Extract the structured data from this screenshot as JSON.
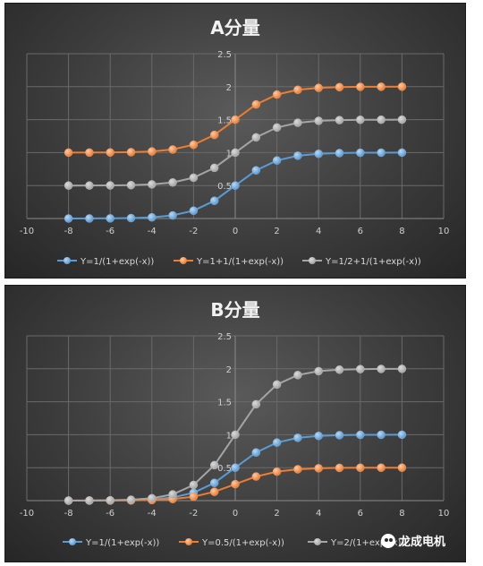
{
  "watermark": {
    "text": "龙成电机",
    "icon": "wechat-icon"
  },
  "chart_data": [
    {
      "type": "line",
      "title": "A分量",
      "xlabel": "",
      "ylabel": "",
      "xlim": [
        -10,
        10
      ],
      "ylim": [
        0,
        2.5
      ],
      "xticks": [
        -10,
        -8,
        -6,
        -4,
        -2,
        0,
        2,
        4,
        6,
        8,
        10
      ],
      "yticks": [
        0.5,
        1,
        1.5,
        2,
        2.5
      ],
      "grid": true,
      "legend": "bottom",
      "x": [
        -8,
        -7,
        -6,
        -5,
        -4,
        -3,
        -2,
        -1,
        0,
        1,
        2,
        3,
        4,
        5,
        6,
        7,
        8
      ],
      "series": [
        {
          "name": "Y=1/(1+exp(-x))",
          "color": "#5b9bd5",
          "values": [
            0.0003,
            0.0009,
            0.0025,
            0.0067,
            0.018,
            0.047,
            0.119,
            0.269,
            0.5,
            0.731,
            0.881,
            0.953,
            0.982,
            0.993,
            0.998,
            0.999,
            1.0
          ]
        },
        {
          "name": "Y=1+1/(1+exp(-x))",
          "color": "#ed7d31",
          "values": [
            1.0003,
            1.0009,
            1.0025,
            1.0067,
            1.018,
            1.047,
            1.119,
            1.269,
            1.5,
            1.731,
            1.881,
            1.953,
            1.982,
            1.993,
            1.998,
            1.999,
            2.0
          ]
        },
        {
          "name": "Y=1/2+1/(1+exp(-x))",
          "color": "#a5a5a5",
          "values": [
            0.5003,
            0.5009,
            0.5025,
            0.5067,
            0.518,
            0.547,
            0.619,
            0.769,
            1.0,
            1.231,
            1.381,
            1.453,
            1.482,
            1.493,
            1.498,
            1.499,
            1.5
          ]
        }
      ]
    },
    {
      "type": "line",
      "title": "B分量",
      "xlabel": "",
      "ylabel": "",
      "xlim": [
        -10,
        10
      ],
      "ylim": [
        0,
        2.5
      ],
      "xticks": [
        -10,
        -8,
        -6,
        -4,
        -2,
        0,
        2,
        4,
        6,
        8,
        10
      ],
      "yticks": [
        0.5,
        1,
        1.5,
        2,
        2.5
      ],
      "grid": true,
      "legend": "bottom",
      "x": [
        -8,
        -7,
        -6,
        -5,
        -4,
        -3,
        -2,
        -1,
        0,
        1,
        2,
        3,
        4,
        5,
        6,
        7,
        8
      ],
      "series": [
        {
          "name": "Y=1/(1+exp(-x))",
          "color": "#5b9bd5",
          "values": [
            0.0003,
            0.0009,
            0.0025,
            0.0067,
            0.018,
            0.047,
            0.119,
            0.269,
            0.5,
            0.731,
            0.881,
            0.953,
            0.982,
            0.993,
            0.998,
            0.999,
            1.0
          ]
        },
        {
          "name": "Y=0.5/(1+exp(-x))",
          "color": "#ed7d31",
          "values": [
            0.0002,
            0.0005,
            0.0012,
            0.0033,
            0.009,
            0.024,
            0.06,
            0.134,
            0.25,
            0.366,
            0.44,
            0.476,
            0.491,
            0.497,
            0.499,
            0.4995,
            0.5
          ]
        },
        {
          "name": "Y=2/(1+exp(-x))",
          "color": "#a5a5a5",
          "values": [
            0.0007,
            0.0018,
            0.005,
            0.0134,
            0.036,
            0.095,
            0.238,
            0.538,
            1.0,
            1.462,
            1.762,
            1.905,
            1.964,
            1.987,
            1.995,
            1.998,
            1.999
          ]
        }
      ]
    }
  ]
}
